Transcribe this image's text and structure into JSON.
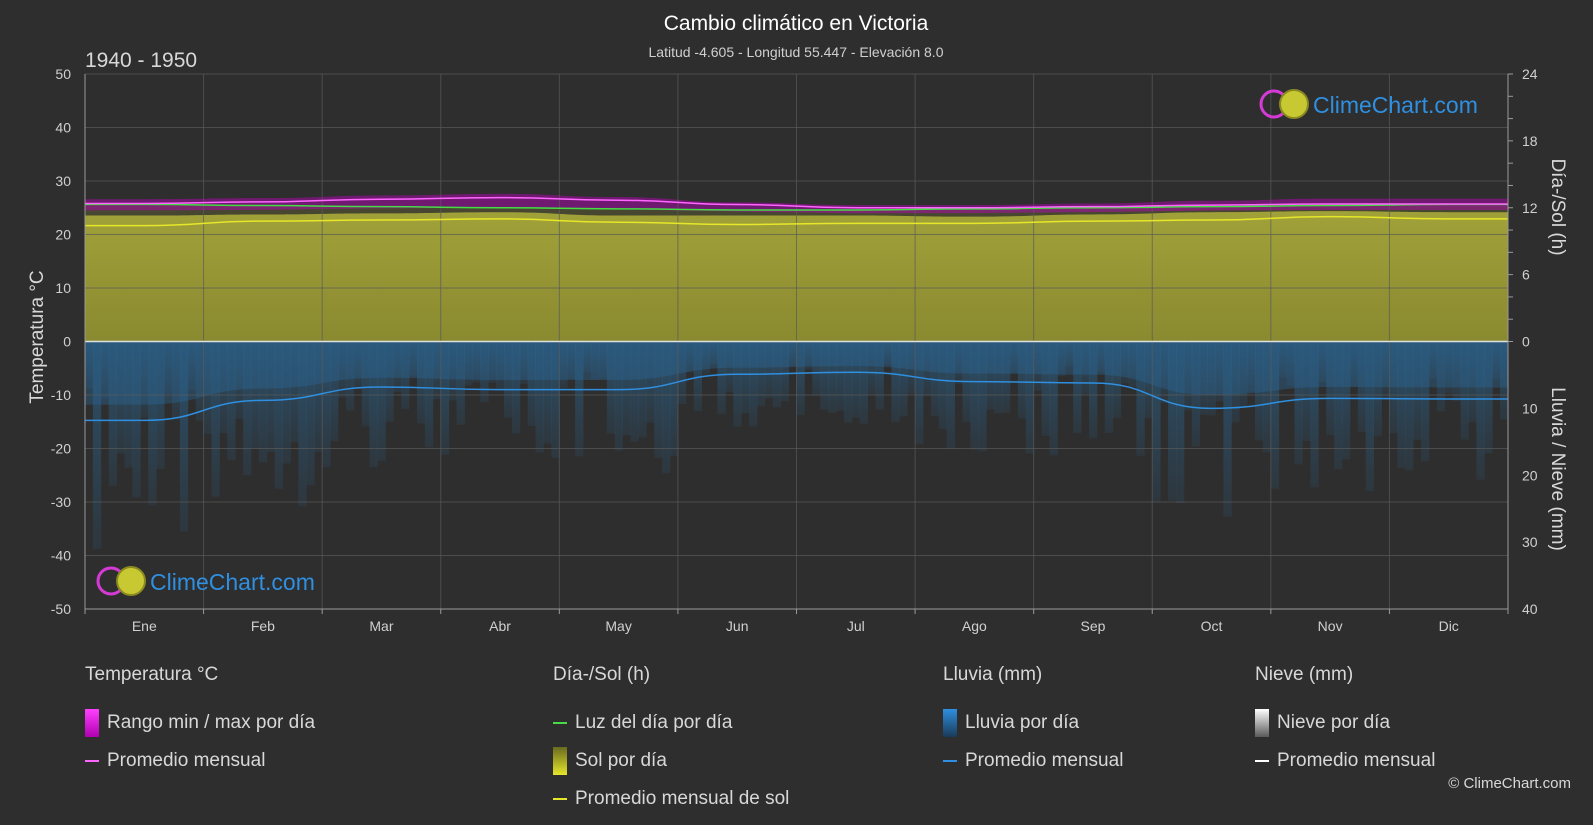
{
  "title": "Cambio climático en Victoria",
  "subtitle": "Latitud -4.605 - Longitud 55.447 - Elevación 8.0",
  "period": "1940 - 1950",
  "logo_text": "ClimeChart.com",
  "copyright": "© ClimeChart.com",
  "colors": {
    "background": "#2e2e2e",
    "temp_range": "#c000c0",
    "temp_avg": "#ff66ff",
    "daylight": "#44dd44",
    "sun_fill": "#9a9a36",
    "sun_avg": "#e6e62a",
    "rain_fill": "#2a6ea0",
    "rain_avg": "#2f8fe0",
    "snow_avg": "#ffffff",
    "logo": "#2f8fe0"
  },
  "chart_data": {
    "type": "area",
    "x_categories": [
      "Ene",
      "Feb",
      "Mar",
      "Abr",
      "May",
      "Jun",
      "Jul",
      "Ago",
      "Sep",
      "Oct",
      "Nov",
      "Dic"
    ],
    "left_axis": {
      "label": "Temperatura °C",
      "range": [
        -50,
        50
      ],
      "ticks": [
        50,
        40,
        30,
        20,
        10,
        0,
        -10,
        -20,
        -30,
        -40,
        -50
      ]
    },
    "right_axis_top": {
      "label": "Día-/Sol (h)",
      "range": [
        0,
        24
      ],
      "ticks": [
        24,
        18,
        12,
        6,
        0
      ]
    },
    "right_axis_bottom": {
      "label": "Lluvia / Nieve (mm)",
      "range": [
        0,
        40
      ],
      "ticks": [
        10,
        20,
        30,
        40
      ]
    },
    "grid": true,
    "series": [
      {
        "name": "Rango min / max por día",
        "unit": "°C",
        "max": [
          26.6,
          26.8,
          27.3,
          27.6,
          27.0,
          26.0,
          25.5,
          25.5,
          25.8,
          26.3,
          26.7,
          26.7
        ],
        "min": [
          24.5,
          24.6,
          24.9,
          25.0,
          24.7,
          24.3,
          24.0,
          24.0,
          24.2,
          24.5,
          24.6,
          24.6
        ]
      },
      {
        "name": "Promedio mensual",
        "unit": "°C",
        "values": [
          25.8,
          26.1,
          26.6,
          26.9,
          26.4,
          25.6,
          25.0,
          25.0,
          25.2,
          25.5,
          25.7,
          25.7
        ]
      },
      {
        "name": "Luz del día por día",
        "unit": "h",
        "values": [
          12.3,
          12.2,
          12.1,
          12.0,
          11.9,
          11.8,
          11.8,
          11.9,
          12.0,
          12.1,
          12.2,
          12.3
        ]
      },
      {
        "name": "Sol por día",
        "unit": "h",
        "values": [
          11.3,
          11.4,
          11.5,
          11.6,
          11.3,
          11.3,
          11.3,
          11.2,
          11.4,
          11.6,
          11.7,
          11.6
        ]
      },
      {
        "name": "Promedio mensual de sol",
        "unit": "h",
        "values": [
          10.4,
          10.8,
          10.9,
          11.0,
          10.7,
          10.5,
          10.6,
          10.6,
          10.8,
          10.9,
          11.2,
          11.0
        ]
      },
      {
        "name": "Lluvia por día",
        "unit": "mm"
      },
      {
        "name": "Promedio mensual",
        "unit": "mm",
        "values": [
          11.8,
          8.8,
          6.8,
          7.2,
          7.2,
          4.9,
          4.6,
          6.0,
          6.2,
          10.0,
          8.5,
          8.6
        ]
      },
      {
        "name": "Nieve por día",
        "unit": "mm"
      },
      {
        "name": "Promedio mensual",
        "unit": "mm",
        "values": [
          0,
          0,
          0,
          0,
          0,
          0,
          0,
          0,
          0,
          0,
          0,
          0
        ]
      }
    ]
  },
  "legend": {
    "temperature": {
      "heading": "Temperatura °C",
      "items": [
        "Rango min / max por día",
        "Promedio mensual"
      ]
    },
    "sun": {
      "heading": "Día-/Sol (h)",
      "items": [
        "Luz del día por día",
        "Sol por día",
        "Promedio mensual de sol"
      ]
    },
    "rain": {
      "heading": "Lluvia (mm)",
      "items": [
        "Lluvia por día",
        "Promedio mensual"
      ]
    },
    "snow": {
      "heading": "Nieve (mm)",
      "items": [
        "Nieve por día",
        "Promedio mensual"
      ]
    }
  }
}
